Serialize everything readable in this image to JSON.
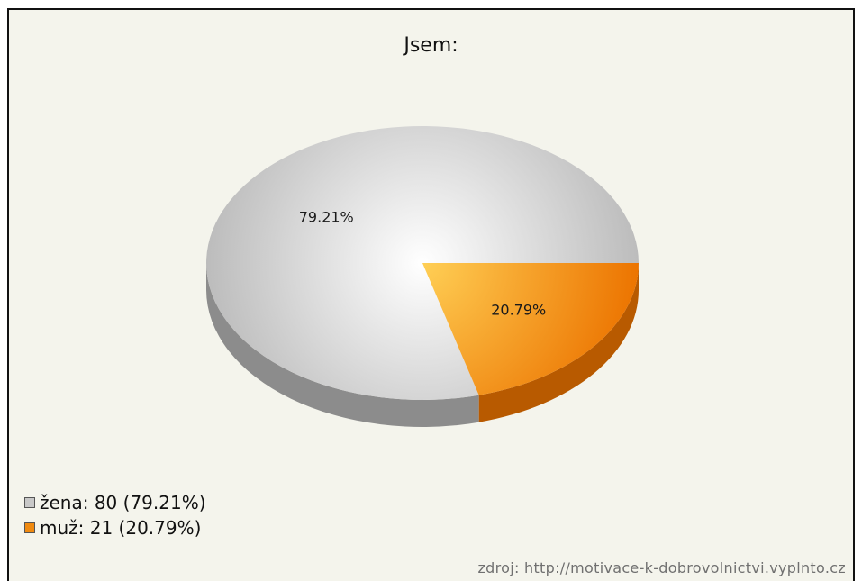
{
  "chart_data": {
    "type": "pie",
    "title": "Jsem:",
    "slices": [
      {
        "label": "žena",
        "value": 80,
        "percent_label": "79.21%",
        "legend": "žena: 80 (79.21%)",
        "color": "#c8c8c8"
      },
      {
        "label": "muž",
        "value": 21,
        "percent_label": "20.79%",
        "legend": "muž: 21 (20.79%)",
        "color": "#f08a10"
      }
    ],
    "legend_position": "bottom-left",
    "three_d": true
  },
  "source": "zdroj: http://motivace-k-dobrovolnictvi.vyplnto.cz"
}
